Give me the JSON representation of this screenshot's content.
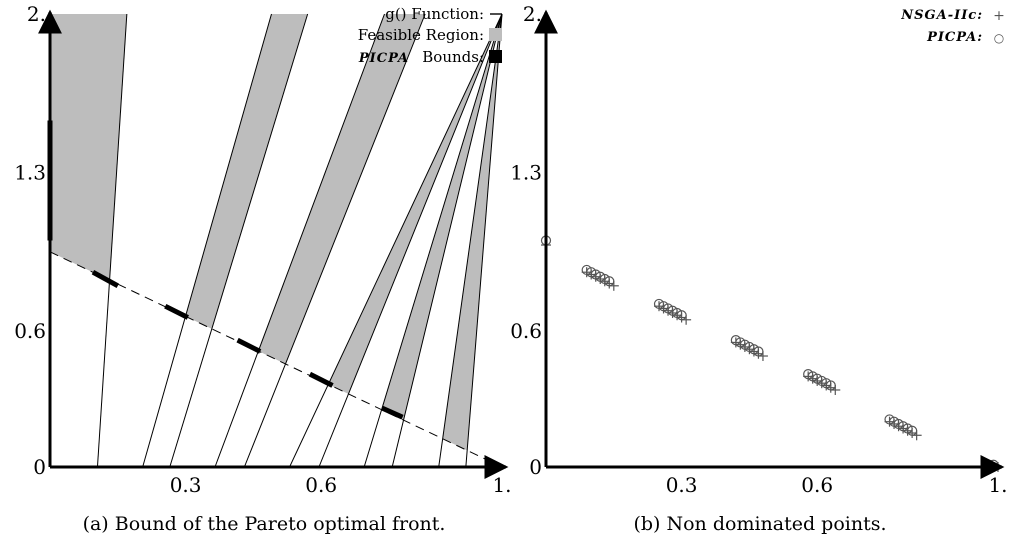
{
  "chart_data": [
    {
      "type": "line",
      "caption": "(a) Bound of the Pareto optimal front.",
      "xlim": [
        0,
        1
      ],
      "ylim": [
        0,
        2
      ],
      "x_ticks": [
        "0.3",
        "0.6",
        "1."
      ],
      "y_ticks": [
        "0",
        "0.6",
        "1.3",
        "2."
      ],
      "legend": [
        {
          "label": "g() Function:",
          "symbol": "line"
        },
        {
          "label": "Feasible Region:",
          "symbol": "gray-square"
        },
        {
          "label": "Bounds:",
          "prefix": "PICPA",
          "symbol": "black-square"
        }
      ],
      "legend_position": "top-right",
      "g_function": {
        "intercept": 0.95,
        "slope": -0.95
      },
      "feasible_bands": [
        {
          "x_bottom": [
            0.0,
            0.105
          ],
          "x_top": [
            0.0,
            0.17
          ]
        },
        {
          "x_bottom": [
            0.205,
            0.265
          ],
          "x_top": [
            0.49,
            0.57
          ]
        },
        {
          "x_bottom": [
            0.365,
            0.43
          ],
          "x_top": [
            0.74,
            0.83
          ]
        },
        {
          "x_bottom": [
            0.53,
            0.595
          ],
          "x_top": [
            1.0,
            1.0
          ]
        },
        {
          "x_bottom": [
            0.695,
            0.757
          ],
          "x_top": [
            1.0,
            1.0
          ]
        },
        {
          "x_bottom": [
            0.86,
            0.92
          ],
          "x_top": [
            1.0,
            1.0
          ]
        }
      ],
      "bounds_segments": [
        {
          "x": [
            0.0,
            0.0
          ],
          "y": [
            1.0,
            1.53
          ]
        },
        {
          "x": [
            0.095,
            0.15
          ],
          "y": [
            0.86,
            0.8
          ]
        },
        {
          "x": [
            0.255,
            0.305
          ],
          "y": [
            0.71,
            0.66
          ]
        },
        {
          "x": [
            0.415,
            0.465
          ],
          "y": [
            0.56,
            0.51
          ]
        },
        {
          "x": [
            0.575,
            0.625
          ],
          "y": [
            0.41,
            0.36
          ]
        },
        {
          "x": [
            0.735,
            0.78
          ],
          "y": [
            0.26,
            0.22
          ]
        }
      ]
    },
    {
      "type": "scatter",
      "caption": "(b) Non dominated points.",
      "xlim": [
        0,
        1
      ],
      "ylim": [
        0,
        2
      ],
      "x_ticks": [
        "0.3",
        "0.6",
        "1."
      ],
      "y_ticks": [
        "0",
        "0.6",
        "1.3",
        "2."
      ],
      "legend": [
        {
          "label": "NSGA-IIc:",
          "symbol": "+"
        },
        {
          "label": "PICPA:",
          "symbol": "○"
        }
      ],
      "legend_position": "top-right",
      "series": [
        {
          "name": "NSGA-IIc",
          "marker": "+",
          "x": [
            0.0,
            0.09,
            0.1,
            0.11,
            0.12,
            0.13,
            0.14,
            0.15,
            0.25,
            0.26,
            0.27,
            0.28,
            0.29,
            0.3,
            0.31,
            0.42,
            0.43,
            0.44,
            0.45,
            0.46,
            0.47,
            0.48,
            0.58,
            0.59,
            0.6,
            0.61,
            0.62,
            0.63,
            0.64,
            0.76,
            0.77,
            0.78,
            0.79,
            0.8,
            0.81,
            0.82,
            0.99,
            1.0
          ],
          "y": [
            0.98,
            0.86,
            0.85,
            0.84,
            0.83,
            0.82,
            0.81,
            0.8,
            0.71,
            0.7,
            0.69,
            0.68,
            0.67,
            0.66,
            0.65,
            0.55,
            0.54,
            0.53,
            0.52,
            0.51,
            0.5,
            0.49,
            0.4,
            0.39,
            0.38,
            0.37,
            0.36,
            0.35,
            0.34,
            0.2,
            0.19,
            0.18,
            0.17,
            0.16,
            0.15,
            0.14,
            0.0,
            0.0
          ]
        },
        {
          "name": "PICPA",
          "marker": "o",
          "x": [
            0.0,
            0.09,
            0.1,
            0.11,
            0.12,
            0.13,
            0.14,
            0.25,
            0.26,
            0.27,
            0.28,
            0.29,
            0.3,
            0.42,
            0.43,
            0.44,
            0.45,
            0.46,
            0.47,
            0.58,
            0.59,
            0.6,
            0.61,
            0.62,
            0.63,
            0.76,
            0.77,
            0.78,
            0.79,
            0.8,
            0.81,
            0.99
          ],
          "y": [
            1.0,
            0.87,
            0.86,
            0.85,
            0.84,
            0.83,
            0.82,
            0.72,
            0.71,
            0.7,
            0.69,
            0.68,
            0.67,
            0.56,
            0.55,
            0.54,
            0.53,
            0.52,
            0.51,
            0.41,
            0.4,
            0.39,
            0.38,
            0.37,
            0.36,
            0.21,
            0.2,
            0.19,
            0.18,
            0.17,
            0.16,
            0.01
          ]
        }
      ]
    }
  ]
}
